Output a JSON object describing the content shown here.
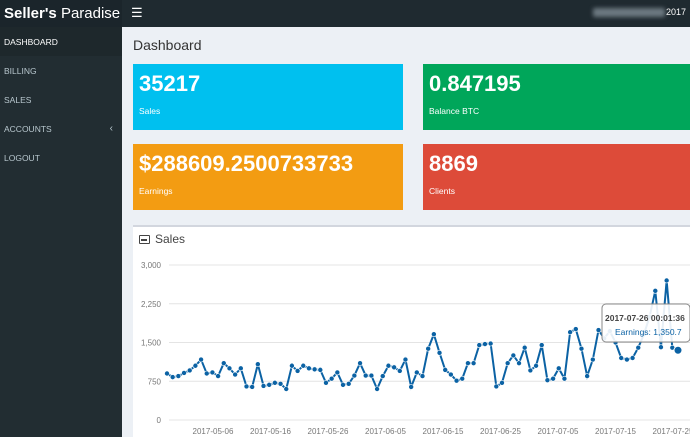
{
  "app": {
    "brand_bold": "Seller's",
    "brand_rest": " Paradise",
    "user_suffix": "2017"
  },
  "sidebar": {
    "items": [
      {
        "label": "DASHBOARD"
      },
      {
        "label": "BILLING"
      },
      {
        "label": "SALES"
      },
      {
        "label": "ACCOUNTS"
      },
      {
        "label": "LOGOUT"
      }
    ]
  },
  "page": {
    "title": "Dashboard"
  },
  "stats": {
    "sales": {
      "value": "35217",
      "label": "Sales"
    },
    "balance": {
      "value": "0.847195",
      "label": "Balance BTC"
    },
    "earnings": {
      "value": "$288609.2500733733",
      "label": "Earnings"
    },
    "clients": {
      "value": "8869",
      "label": "Clients"
    }
  },
  "colors": {
    "sales": "#00c0ef",
    "balance": "#00a65a",
    "earnings": "#f39c12",
    "clients": "#dd4b39",
    "line": "#0b62a4"
  },
  "sales_panel": {
    "title": "Sales"
  },
  "chart_data": {
    "type": "line",
    "title": "Sales",
    "ylim": [
      0,
      3000
    ],
    "yticks": [
      "0",
      "750",
      "1,500",
      "2,250",
      "3,000"
    ],
    "xticks": [
      "2017-05-06",
      "2017-05-16",
      "2017-05-26",
      "2017-06-05",
      "2017-06-15",
      "2017-06-25",
      "2017-07-05",
      "2017-07-15",
      "2017-07-25"
    ],
    "grid": true,
    "series": [
      {
        "values": [
          900,
          830,
          850,
          910,
          960,
          1050,
          1170,
          900,
          920,
          850,
          1100,
          1000,
          880,
          1000,
          650,
          640,
          1080,
          660,
          680,
          720,
          700,
          600,
          1050,
          950,
          1050,
          1000,
          980,
          970,
          720,
          800,
          920,
          680,
          700,
          860,
          1100,
          860,
          860,
          600,
          850,
          1050,
          1020,
          950,
          1170,
          640,
          920,
          850,
          1380,
          1660,
          1300,
          970,
          880,
          760,
          800,
          1100,
          1100,
          1450,
          1470,
          1480,
          650,
          720,
          1100,
          1250,
          1100,
          1400,
          960,
          1050,
          1450,
          770,
          800,
          1000,
          800,
          1700,
          1760,
          1380,
          850,
          1170,
          1740,
          1580,
          1720,
          1500,
          1200,
          1170,
          1200,
          1400,
          1660,
          2000,
          2500,
          1410,
          2700,
          1400,
          1350
        ]
      }
    ],
    "tooltip": {
      "title": "2017-07-26 00:01:36",
      "label": "Earnings: 1,350.7"
    }
  }
}
